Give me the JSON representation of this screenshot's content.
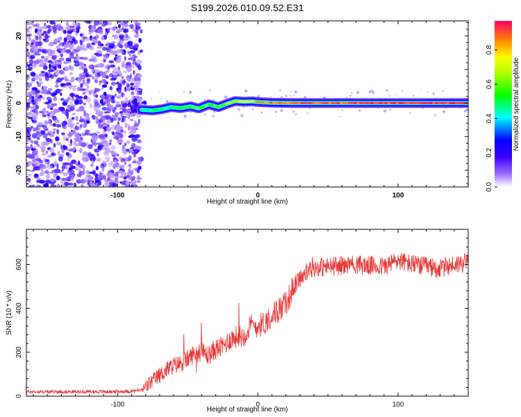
{
  "title": "S199.2026.010.09.52.E31",
  "chart_data": [
    {
      "type": "heatmap",
      "xlabel": "Height of straight line (km)",
      "ylabel": "Frequency (Hz)",
      "xlim": [
        -165,
        150
      ],
      "ylim": [
        -25,
        24.5
      ],
      "x_ticks": [
        -100,
        0,
        100
      ],
      "y_ticks": [
        20,
        10,
        0,
        -10,
        -20
      ],
      "colorbar": {
        "label": "Normalized spectral amplitude",
        "range": [
          0,
          0.97
        ],
        "ticks": [
          0.0,
          0.2,
          0.4,
          0.6,
          0.8
        ],
        "tick_labels": [
          "0.0",
          "0.2",
          "0.4",
          "0.6",
          "0.8"
        ]
      },
      "noise_region_x": [
        -165,
        -83
      ],
      "signal_track": {
        "x": [
          -83,
          -75,
          -68,
          -62,
          -55,
          -48,
          -42,
          -35,
          -28,
          -22,
          -16,
          -10,
          -4,
          0,
          10,
          30,
          60,
          100,
          150
        ],
        "freq": [
          -2.0,
          -2.2,
          -1.8,
          -1.2,
          -1.5,
          -1.0,
          -1.6,
          -0.4,
          -1.2,
          -0.2,
          0.6,
          0.4,
          0.5,
          0.3,
          0.1,
          0.0,
          0.0,
          0.0,
          0.0
        ],
        "amplitude": [
          0.45,
          0.5,
          0.5,
          0.5,
          0.55,
          0.55,
          0.6,
          0.6,
          0.6,
          0.65,
          0.75,
          0.8,
          0.85,
          0.85,
          0.9,
          0.9,
          0.92,
          0.95,
          0.95
        ]
      }
    },
    {
      "type": "line",
      "xlabel": "Height of straight line (km)",
      "ylabel": "SNR (10 * v/v)",
      "xlim": [
        -165,
        150
      ],
      "ylim": [
        0,
        760
      ],
      "x_ticks": [
        -100,
        0,
        100
      ],
      "y_ticks": [
        0,
        200,
        400,
        600
      ],
      "series": [
        {
          "name": "SNR",
          "color": "#e83a3a",
          "x": [
            -165,
            -140,
            -110,
            -90,
            -82,
            -75,
            -70,
            -65,
            -60,
            -55,
            -50,
            -45,
            -40,
            -35,
            -30,
            -25,
            -20,
            -15,
            -10,
            -5,
            0,
            5,
            10,
            15,
            20,
            25,
            30,
            40,
            50,
            60,
            70,
            80,
            90,
            100,
            110,
            120,
            130,
            140,
            150
          ],
          "y": [
            20,
            20,
            20,
            22,
            30,
            70,
            95,
            120,
            140,
            150,
            170,
            195,
            200,
            185,
            215,
            225,
            260,
            270,
            275,
            320,
            320,
            335,
            370,
            395,
            420,
            490,
            540,
            585,
            590,
            595,
            600,
            595,
            590,
            620,
            600,
            590,
            580,
            600,
            610
          ]
        }
      ]
    }
  ]
}
